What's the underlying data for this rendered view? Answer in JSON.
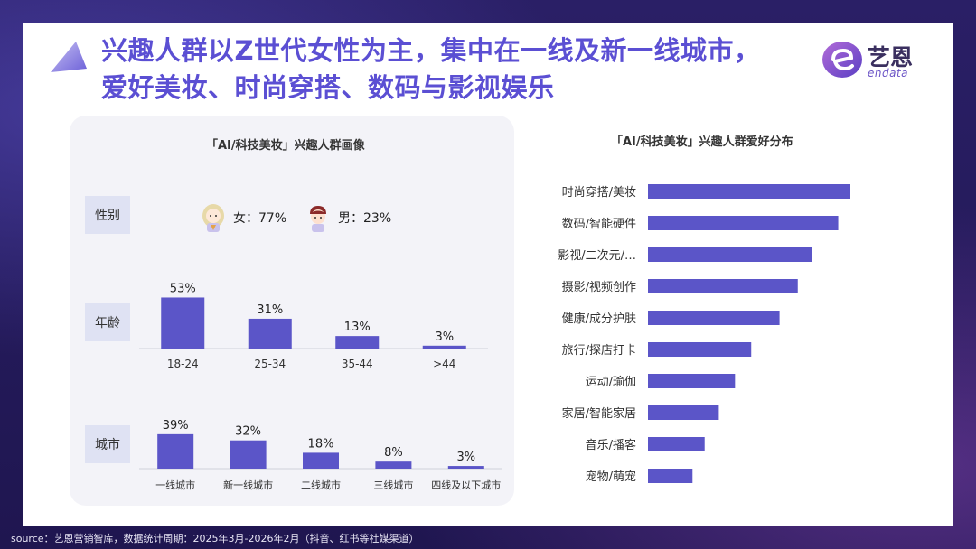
{
  "headline": {
    "line1": "兴趣人群以Z世代女性为主，集中在一线及新一线城市，",
    "line2": "爱好美妆、时尚穿搭、数码与影视娱乐"
  },
  "logo": {
    "name": "艺恩",
    "sub": "endata"
  },
  "left_panel": {
    "title": "「AI/科技美妆」兴趣人群画像",
    "gender": {
      "label": "性别",
      "female": "女：77%",
      "male": "男：23%"
    },
    "age_label": "年龄",
    "city_label": "城市"
  },
  "right_panel": {
    "title": "「AI/科技美妆」兴趣人群爱好分布"
  },
  "chart_data": [
    {
      "type": "bar",
      "categories": [
        "18-24",
        "25-34",
        "35-44",
        ">44"
      ],
      "values": [
        53,
        31,
        13,
        3
      ],
      "value_labels": [
        "53%",
        "31%",
        "13%",
        "3%"
      ],
      "ylim": [
        0,
        60
      ],
      "color": "#5b55c8"
    },
    {
      "type": "bar",
      "categories": [
        "一线城市",
        "新一线城市",
        "二线城市",
        "三线城市",
        "四线及以下城市"
      ],
      "values": [
        39,
        32,
        18,
        8,
        3
      ],
      "value_labels": [
        "39%",
        "32%",
        "18%",
        "8%",
        "3%"
      ],
      "ylim": [
        0,
        45
      ],
      "color": "#5b55c8"
    },
    {
      "type": "bar",
      "orientation": "horizontal",
      "categories": [
        "时尚穿搭/美妆",
        "数码/智能硬件",
        "影视/二次元/…",
        "摄影/视频创作",
        "健康/成分护肤",
        "旅行/探店打卡",
        "运动/瑜伽",
        "家居/智能家居",
        "音乐/播客",
        "宠物/萌宠"
      ],
      "values": [
        100,
        94,
        81,
        74,
        65,
        51,
        43,
        35,
        28,
        22
      ],
      "xlim": [
        0,
        100
      ],
      "color": "#5b55c8"
    }
  ],
  "source": "source：艺恩营销智库，数据统计周期：2025年3月-2026年2月（抖音、红书等社媒渠道）"
}
